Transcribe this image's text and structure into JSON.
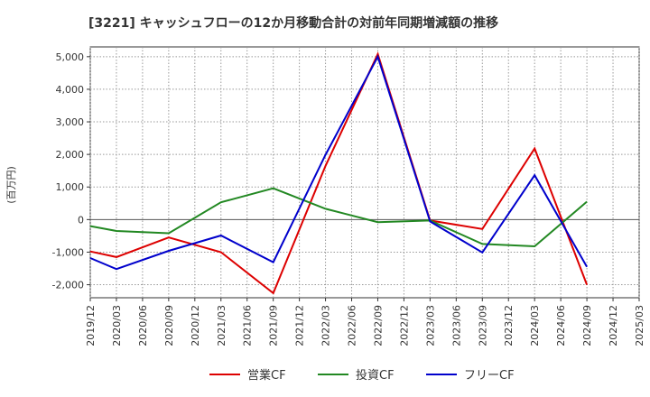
{
  "chart_data": {
    "type": "line",
    "title": "[3221]  キャッシュフローの12か月移動合計の対前年同期増減額の推移",
    "ylabel": "(百万円)",
    "xlabel": "",
    "ylim": [
      -2400,
      5300
    ],
    "yticks": [
      -2000,
      -1000,
      0,
      1000,
      2000,
      3000,
      4000,
      5000
    ],
    "ytick_labels": [
      "-2,000",
      "-1,000",
      "0",
      "1,000",
      "2,000",
      "3,000",
      "4,000",
      "5,000"
    ],
    "categories": [
      "2019/12",
      "2020/03",
      "2020/06",
      "2020/09",
      "2020/12",
      "2021/03",
      "2021/06",
      "2021/09",
      "2021/12",
      "2022/03",
      "2022/06",
      "2022/09",
      "2022/12",
      "2023/03",
      "2023/06",
      "2023/09",
      "2023/12",
      "2024/03",
      "2024/06",
      "2024/09",
      "2024/12",
      "2025/03"
    ],
    "series": [
      {
        "name": "営業CF",
        "color": "#dd0000",
        "values": [
          -980,
          -1150,
          null,
          -550,
          null,
          -1000,
          null,
          -2260,
          null,
          1650,
          null,
          5080,
          null,
          -30,
          null,
          -290,
          null,
          2180,
          null,
          -2000,
          null,
          null
        ]
      },
      {
        "name": "投資CF",
        "color": "#228822",
        "values": [
          -200,
          -350,
          null,
          -420,
          null,
          530,
          null,
          960,
          null,
          330,
          null,
          -80,
          null,
          -30,
          null,
          -750,
          null,
          -820,
          null,
          550,
          null,
          null
        ]
      },
      {
        "name": "フリーCF",
        "color": "#0000cc",
        "values": [
          -1180,
          -1520,
          null,
          -960,
          null,
          -490,
          null,
          -1310,
          null,
          1990,
          null,
          5000,
          null,
          -60,
          null,
          -1010,
          null,
          1360,
          null,
          -1450,
          null,
          null
        ]
      }
    ],
    "grid": true,
    "legend": "bottom"
  }
}
